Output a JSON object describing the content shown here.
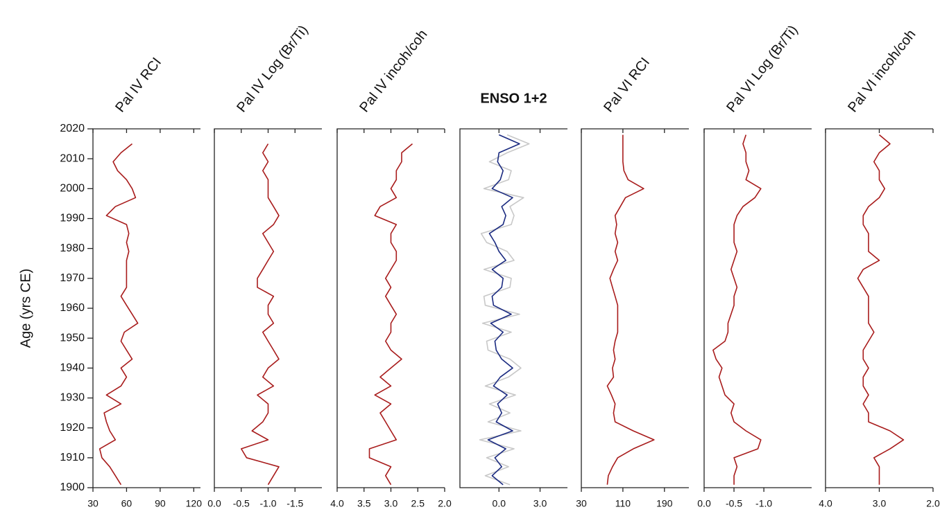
{
  "chart_data": [
    {
      "type": "line",
      "title": "Pal IV RCI",
      "ylabel": "Age (yrs CE)",
      "ylim": [
        1900,
        2020
      ],
      "yticks": [
        1900,
        1910,
        1920,
        1930,
        1940,
        1950,
        1960,
        1970,
        1980,
        1990,
        2000,
        2010,
        2020
      ],
      "xlim": [
        30,
        126
      ],
      "xticks": [
        30,
        60,
        90,
        120
      ],
      "x": [
        1901,
        1904,
        1907,
        1910,
        1913,
        1916,
        1919,
        1922,
        1925,
        1928,
        1931,
        1934,
        1937,
        1940,
        1943,
        1946,
        1949,
        1952,
        1955,
        1958,
        1961,
        1964,
        1967,
        1970,
        1973,
        1976,
        1979,
        1982,
        1985,
        1988,
        1991,
        1994,
        1997,
        2000,
        2003,
        2006,
        2009,
        2012,
        2015,
        2018
      ],
      "series": [
        {
          "color": "#a81b1b",
          "values": [
            55,
            50,
            45,
            38,
            36,
            50,
            45,
            42,
            40,
            55,
            42,
            55,
            60,
            55,
            65,
            60,
            55,
            58,
            70,
            65,
            60,
            55,
            60,
            60,
            60,
            60,
            62,
            60,
            62,
            60,
            42,
            50,
            68,
            65,
            60,
            52,
            48,
            55,
            65,
            null
          ]
        }
      ]
    },
    {
      "type": "line",
      "title": "Pal IV Log (Br/Ti)",
      "ylim": [
        1900,
        2020
      ],
      "xlim": [
        0,
        -2.0
      ],
      "xticks": [
        {
          "value": 0,
          "label": "0.0"
        },
        -0.5,
        {
          "value": -1,
          "label": "-1.0"
        },
        -1.5
      ],
      "x": [
        1901,
        1904,
        1907,
        1910,
        1913,
        1916,
        1919,
        1922,
        1925,
        1928,
        1931,
        1934,
        1937,
        1940,
        1943,
        1946,
        1949,
        1952,
        1955,
        1958,
        1961,
        1964,
        1967,
        1970,
        1973,
        1976,
        1979,
        1982,
        1985,
        1988,
        1991,
        1994,
        1997,
        2000,
        2003,
        2006,
        2009,
        2012,
        2015,
        2018
      ],
      "series": [
        {
          "color": "#a81b1b",
          "values": [
            -1.0,
            -1.1,
            -1.2,
            -0.6,
            -0.5,
            -1.0,
            -0.7,
            -0.9,
            -1.0,
            -1.0,
            -0.8,
            -1.1,
            -0.9,
            -1.0,
            -1.2,
            -1.1,
            -1.0,
            -0.9,
            -1.1,
            -1.0,
            -1.0,
            -1.1,
            -0.8,
            -0.8,
            -0.9,
            -1.0,
            -1.1,
            -1.0,
            -0.9,
            -1.1,
            -1.2,
            -1.1,
            -1.0,
            -1.0,
            -1.0,
            -0.9,
            -1.0,
            -0.9,
            -1.0,
            null
          ]
        }
      ]
    },
    {
      "type": "line",
      "title": "Pal IV incoh/coh",
      "ylim": [
        1900,
        2020
      ],
      "xlim": [
        4.0,
        2.0
      ],
      "xticks": [
        {
          "value": 4,
          "label": "4.0"
        },
        3.5,
        {
          "value": 3,
          "label": "3.0"
        },
        2.5,
        {
          "value": 2,
          "label": "2.0"
        }
      ],
      "x": [
        1901,
        1904,
        1907,
        1910,
        1913,
        1916,
        1919,
        1922,
        1925,
        1928,
        1931,
        1934,
        1937,
        1940,
        1943,
        1946,
        1949,
        1952,
        1955,
        1958,
        1961,
        1964,
        1967,
        1970,
        1973,
        1976,
        1979,
        1982,
        1985,
        1988,
        1991,
        1994,
        1997,
        2000,
        2003,
        2006,
        2009,
        2012,
        2015,
        2018
      ],
      "series": [
        {
          "color": "#a81b1b",
          "values": [
            3.0,
            3.1,
            3.0,
            3.4,
            3.4,
            2.9,
            3.0,
            3.1,
            3.2,
            3.0,
            3.3,
            3.0,
            3.2,
            3.0,
            2.8,
            3.0,
            3.1,
            3.0,
            3.0,
            2.9,
            3.0,
            3.1,
            3.0,
            3.1,
            3.0,
            2.9,
            2.9,
            3.0,
            3.0,
            2.9,
            3.3,
            3.2,
            2.9,
            3.0,
            2.9,
            2.9,
            2.8,
            2.8,
            2.6,
            null
          ]
        }
      ]
    },
    {
      "type": "line",
      "title": "ENSO 1+2",
      "ylim": [
        1900,
        2020
      ],
      "xlim": [
        -2.85,
        5.0
      ],
      "xticks": [
        {
          "value": 0,
          "label": "0.0"
        },
        {
          "value": 3,
          "label": "3.0"
        }
      ],
      "x": [
        1901,
        1904,
        1907,
        1910,
        1913,
        1916,
        1919,
        1922,
        1925,
        1928,
        1931,
        1934,
        1937,
        1940,
        1943,
        1946,
        1949,
        1952,
        1955,
        1958,
        1961,
        1964,
        1967,
        1970,
        1973,
        1976,
        1979,
        1982,
        1985,
        1988,
        1991,
        1994,
        1997,
        2000,
        2003,
        2006,
        2009,
        2012,
        2015,
        2018
      ],
      "series": [
        {
          "color": "#c8c8c8",
          "values": [
            0.8,
            -1.0,
            0.7,
            -0.9,
            1.1,
            -1.4,
            1.6,
            -0.8,
            0.8,
            -0.7,
            1.2,
            -1.0,
            0.7,
            1.6,
            0.8,
            -0.8,
            -0.9,
            0.9,
            -1.2,
            1.5,
            -1.0,
            -1.1,
            0.8,
            0.9,
            -1.1,
            1.1,
            0.6,
            -0.9,
            -1.3,
            0.9,
            1.1,
            0.8,
            1.8,
            -1.1,
            0.7,
            0.9,
            -0.7,
            0.6,
            2.2,
            0.6
          ]
        },
        {
          "color": "#1a2a80",
          "values": [
            0.3,
            -0.5,
            0.2,
            -0.3,
            0.5,
            -0.8,
            1.0,
            -0.2,
            0.2,
            -0.1,
            0.6,
            -0.4,
            0.1,
            1.0,
            0.2,
            -0.2,
            -0.3,
            0.3,
            -0.6,
            0.9,
            -0.4,
            -0.5,
            0.2,
            0.3,
            -0.5,
            0.5,
            0.0,
            -0.3,
            -0.7,
            0.3,
            0.5,
            0.2,
            1.0,
            -0.5,
            0.1,
            0.3,
            -0.1,
            0.0,
            1.5,
            0.0
          ]
        }
      ]
    },
    {
      "type": "line",
      "title": "Pal VI RCI",
      "ylim": [
        1900,
        2020
      ],
      "xlim": [
        30,
        237
      ],
      "xticks": [
        30,
        110,
        190
      ],
      "x": [
        1901,
        1904,
        1907,
        1910,
        1913,
        1916,
        1919,
        1922,
        1925,
        1928,
        1931,
        1934,
        1937,
        1940,
        1943,
        1946,
        1949,
        1952,
        1955,
        1958,
        1961,
        1964,
        1967,
        1970,
        1973,
        1976,
        1979,
        1982,
        1985,
        1988,
        1991,
        1994,
        1997,
        2000,
        2003,
        2006,
        2009,
        2012,
        2015,
        2018
      ],
      "series": [
        {
          "color": "#a81b1b",
          "values": [
            80,
            82,
            90,
            100,
            130,
            170,
            130,
            95,
            92,
            95,
            88,
            80,
            92,
            90,
            95,
            92,
            95,
            100,
            100,
            100,
            100,
            95,
            90,
            85,
            92,
            100,
            95,
            100,
            95,
            98,
            95,
            105,
            115,
            150,
            120,
            112,
            110,
            110,
            110,
            110
          ]
        }
      ]
    },
    {
      "type": "line",
      "title": "Pal VI Log (Br/Ti)",
      "ylim": [
        1900,
        2020
      ],
      "xlim": [
        0,
        -1.8
      ],
      "xticks": [
        {
          "value": 0,
          "label": "0.0"
        },
        -0.5,
        {
          "value": -1,
          "label": "-1.0"
        }
      ],
      "x": [
        1901,
        1904,
        1907,
        1910,
        1913,
        1916,
        1919,
        1922,
        1925,
        1928,
        1931,
        1934,
        1937,
        1940,
        1943,
        1946,
        1949,
        1952,
        1955,
        1958,
        1961,
        1964,
        1967,
        1970,
        1973,
        1976,
        1979,
        1982,
        1985,
        1988,
        1991,
        1994,
        1997,
        2000,
        2003,
        2006,
        2009,
        2012,
        2015,
        2018
      ],
      "series": [
        {
          "color": "#a81b1b",
          "values": [
            -0.5,
            -0.5,
            -0.55,
            -0.5,
            -0.9,
            -0.95,
            -0.7,
            -0.5,
            -0.45,
            -0.5,
            -0.35,
            -0.3,
            -0.25,
            -0.3,
            -0.2,
            -0.15,
            -0.35,
            -0.4,
            -0.4,
            -0.45,
            -0.5,
            -0.5,
            -0.55,
            -0.5,
            -0.45,
            -0.5,
            -0.55,
            -0.5,
            -0.5,
            -0.5,
            -0.55,
            -0.65,
            -0.85,
            -0.95,
            -0.7,
            -0.75,
            -0.7,
            -0.7,
            -0.65,
            -0.7
          ]
        }
      ]
    },
    {
      "type": "line",
      "title": "Pal VI incoh/coh",
      "ylim": [
        1900,
        2020
      ],
      "xlim": [
        4.0,
        2.0
      ],
      "xticks": [
        {
          "value": 4,
          "label": "4.0"
        },
        {
          "value": 3,
          "label": "3.0"
        },
        {
          "value": 2,
          "label": "2.0"
        }
      ],
      "x": [
        1901,
        1904,
        1907,
        1910,
        1913,
        1916,
        1919,
        1922,
        1925,
        1928,
        1931,
        1934,
        1937,
        1940,
        1943,
        1946,
        1949,
        1952,
        1955,
        1958,
        1961,
        1964,
        1967,
        1970,
        1973,
        1976,
        1979,
        1982,
        1985,
        1988,
        1991,
        1994,
        1997,
        2000,
        2003,
        2006,
        2009,
        2012,
        2015,
        2018
      ],
      "series": [
        {
          "color": "#a81b1b",
          "values": [
            3.0,
            3.0,
            3.0,
            3.1,
            2.8,
            2.55,
            2.8,
            3.2,
            3.2,
            3.3,
            3.2,
            3.3,
            3.3,
            3.2,
            3.3,
            3.3,
            3.2,
            3.1,
            3.2,
            3.2,
            3.2,
            3.2,
            3.3,
            3.4,
            3.3,
            3.0,
            3.2,
            3.2,
            3.2,
            3.3,
            3.3,
            3.2,
            3.0,
            2.9,
            3.0,
            3.0,
            3.1,
            3.0,
            2.8,
            3.0
          ]
        }
      ]
    }
  ]
}
